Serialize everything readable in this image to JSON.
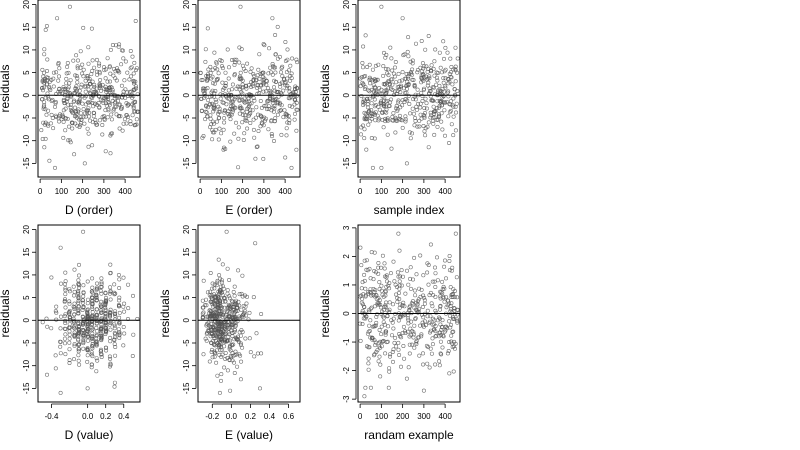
{
  "chart_data": [
    {
      "type": "scatter",
      "xlabel": "D (order)",
      "ylabel": "residuals",
      "xlim": [
        -10,
        470
      ],
      "ylim": [
        -18,
        21
      ],
      "xticks": [
        "0",
        "100",
        "200",
        "300",
        "400"
      ],
      "yticks": [
        "-15",
        "-10",
        "-5",
        "0",
        "5",
        "10",
        "15",
        "20"
      ],
      "hline": 0,
      "n_points": 460,
      "x_range": [
        0,
        460
      ],
      "marker": "open-circle",
      "color": "#555555",
      "spread": 5.5,
      "seed": 11,
      "outliers": [
        [
          80,
          17
        ],
        [
          140,
          19.5
        ],
        [
          70,
          -16
        ],
        [
          210,
          -15
        ],
        [
          160,
          -13
        ]
      ]
    },
    {
      "type": "scatter",
      "xlabel": "E (order)",
      "ylabel": "residuals",
      "xlim": [
        -10,
        470
      ],
      "ylim": [
        -18,
        21
      ],
      "xticks": [
        "0",
        "100",
        "200",
        "300",
        "400"
      ],
      "yticks": [
        "-15",
        "-10",
        "-5",
        "0",
        "5",
        "10",
        "15",
        "20"
      ],
      "hline": 0,
      "n_points": 460,
      "x_range": [
        0,
        460
      ],
      "marker": "open-circle",
      "color": "#555555",
      "spread": 5.5,
      "seed": 23,
      "outliers": [
        [
          190,
          19.5
        ],
        [
          340,
          17
        ],
        [
          430,
          -16
        ],
        [
          260,
          -14
        ],
        [
          110,
          -12
        ]
      ]
    },
    {
      "type": "scatter",
      "xlabel": "sample index",
      "ylabel": "residuals",
      "xlim": [
        -10,
        470
      ],
      "ylim": [
        -18,
        21
      ],
      "xticks": [
        "0",
        "100",
        "200",
        "300",
        "400"
      ],
      "yticks": [
        "-15",
        "-10",
        "-5",
        "0",
        "5",
        "10",
        "15",
        "20"
      ],
      "hline": 0,
      "n_points": 460,
      "x_range": [
        0,
        460
      ],
      "marker": "open-circle",
      "color": "#555555",
      "spread": 5.5,
      "seed": 37,
      "outliers": [
        [
          100,
          19.5
        ],
        [
          200,
          17
        ],
        [
          60,
          -16
        ],
        [
          100,
          -16
        ],
        [
          220,
          -15
        ]
      ]
    },
    {
      "type": "scatter",
      "xlabel": "D (value)",
      "ylabel": "residuals",
      "xlim": [
        -0.55,
        0.58
      ],
      "ylim": [
        -18,
        21
      ],
      "xticks": [
        "-0.4",
        "0.0",
        "0.2",
        "0.4"
      ],
      "xtick_values": [
        -0.4,
        0.0,
        0.2,
        0.4
      ],
      "yticks": [
        "-15",
        "-10",
        "-5",
        "0",
        "5",
        "10",
        "15",
        "20"
      ],
      "hline": 0,
      "n_points": 460,
      "x_range": [
        -0.52,
        0.55
      ],
      "x_center": 0.05,
      "x_spread": 0.2,
      "x_columns": 0.05,
      "marker": "open-circle",
      "color": "#555555",
      "spread": 5.5,
      "seed": 41,
      "outliers": [
        [
          -0.05,
          19.5
        ],
        [
          -0.3,
          16
        ],
        [
          -0.3,
          -16
        ],
        [
          0.0,
          -15
        ],
        [
          -0.45,
          -12
        ]
      ]
    },
    {
      "type": "scatter",
      "xlabel": "E (value)",
      "ylabel": "residuals",
      "xlim": [
        -0.35,
        0.72
      ],
      "ylim": [
        -18,
        21
      ],
      "xticks": [
        "-0.2",
        "0.0",
        "0.2",
        "0.4",
        "0.6"
      ],
      "xtick_values": [
        -0.2,
        0.0,
        0.2,
        0.4,
        0.6
      ],
      "yticks": [
        "-15",
        "-10",
        "-5",
        "0",
        "5",
        "10",
        "15",
        "20"
      ],
      "hline": 0,
      "n_points": 460,
      "x_range": [
        -0.3,
        0.7
      ],
      "x_center": -0.1,
      "x_spread": 0.15,
      "x_skew": true,
      "marker": "open-circle",
      "color": "#555555",
      "spread": 5.5,
      "seed": 53,
      "outliers": [
        [
          -0.05,
          19.5
        ],
        [
          0.25,
          17
        ],
        [
          -0.12,
          -16
        ],
        [
          0.3,
          -15
        ],
        [
          0.1,
          -13
        ]
      ]
    },
    {
      "type": "scatter",
      "xlabel": "randam example",
      "ylabel": "residuals",
      "xlim": [
        -10,
        470
      ],
      "ylim": [
        -3.1,
        3.1
      ],
      "xticks": [
        "0",
        "100",
        "200",
        "300",
        "400"
      ],
      "yticks": [
        "-3",
        "-2",
        "-1",
        "0",
        "1",
        "2",
        "3"
      ],
      "hline": 0,
      "n_points": 460,
      "x_range": [
        0,
        460
      ],
      "marker": "open-circle",
      "color": "#555555",
      "spread": 1.0,
      "seed": 67,
      "outliers": [
        [
          180,
          2.8
        ],
        [
          450,
          2.8
        ],
        [
          20,
          -2.9
        ],
        [
          300,
          -2.7
        ]
      ]
    }
  ]
}
